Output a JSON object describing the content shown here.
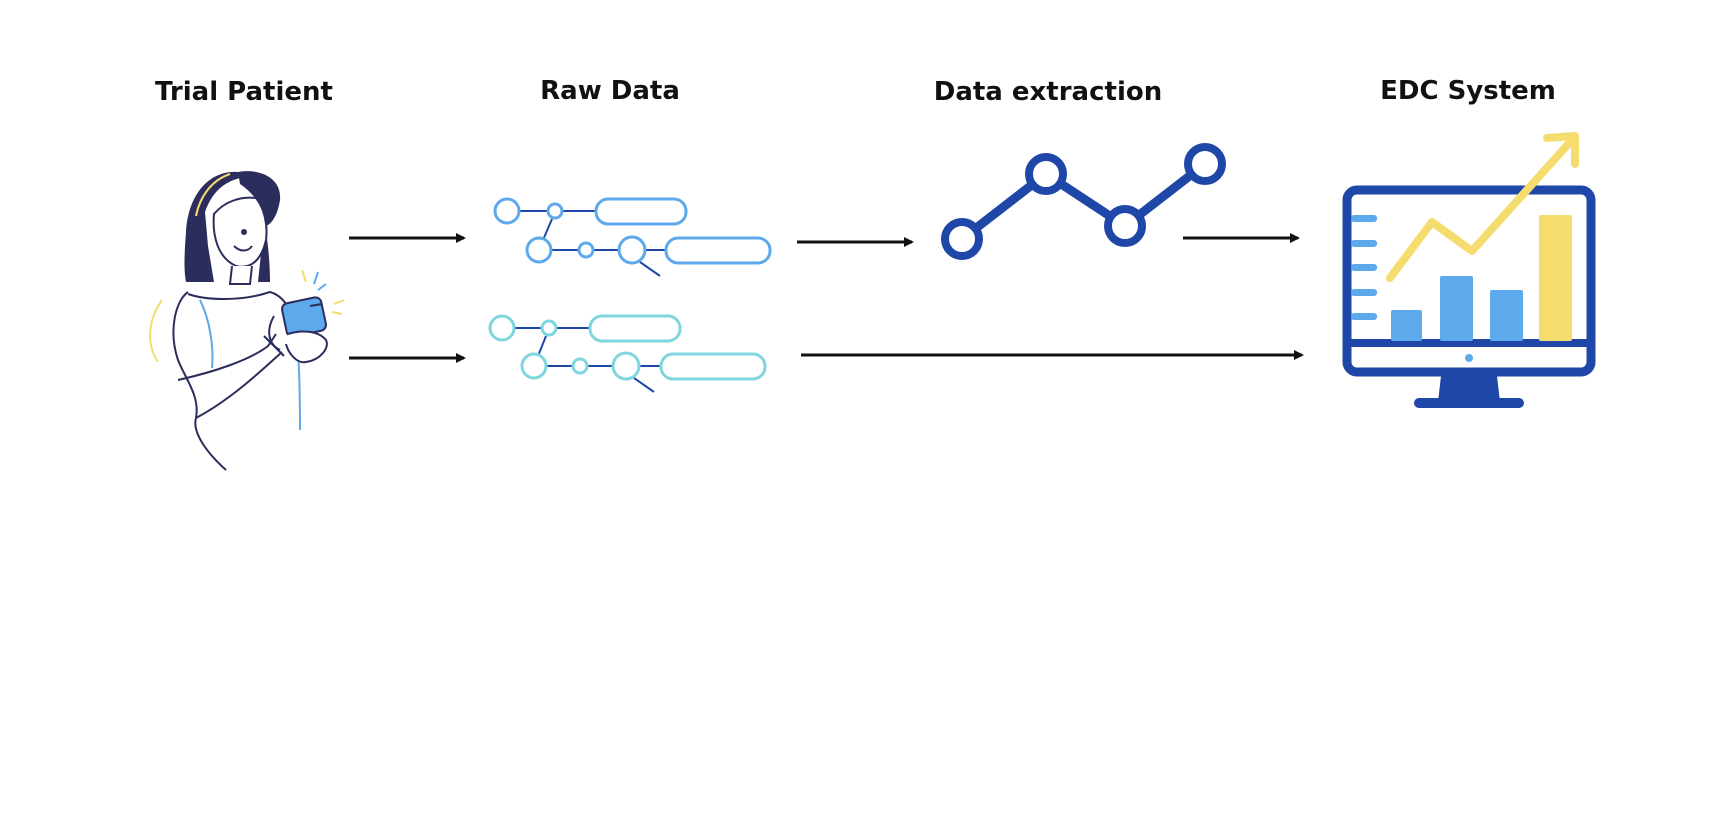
{
  "diagram": {
    "stages": [
      {
        "id": "trial-patient",
        "label": "Trial Patient",
        "icon": "patient-with-phone-icon"
      },
      {
        "id": "raw-data",
        "label": "Raw Data",
        "icon": "data-nodes-icon"
      },
      {
        "id": "data-extraction",
        "label": "Data extraction",
        "icon": "line-graph-nodes-icon"
      },
      {
        "id": "edc-system",
        "label": "EDC System",
        "icon": "monitor-analytics-icon"
      }
    ],
    "connections": [
      {
        "from": "trial-patient",
        "to": "raw-data"
      },
      {
        "from": "trial-patient",
        "to": "raw-data"
      },
      {
        "from": "raw-data",
        "to": "data-extraction"
      },
      {
        "from": "data-extraction",
        "to": "edc-system"
      },
      {
        "from": "raw-data",
        "to": "edc-system"
      }
    ],
    "colors": {
      "dark_blue": "#1f47a8",
      "mid_blue": "#5ea8ec",
      "light_cyan": "#7fd6de",
      "yellow": "#f5dc6e",
      "navy": "#2b2d5c",
      "arrow": "#111111"
    }
  }
}
